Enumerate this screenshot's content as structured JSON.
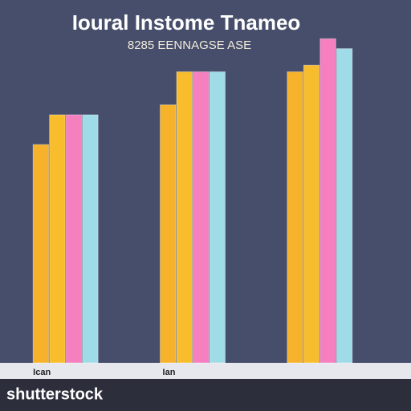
{
  "chart_data": {
    "type": "bar",
    "title": "Ioural Instome Tnameo",
    "subtitle": "8285 EENNAGSE ASE",
    "categories": [
      "Ican",
      "Ian",
      null
    ],
    "series": [
      {
        "color": "#f6b22a",
        "values": [
          66,
          78,
          88
        ]
      },
      {
        "color": "#f7bd2c",
        "values": [
          75,
          88,
          90
        ]
      },
      {
        "color": "#f57fbf",
        "values": [
          75,
          88,
          98
        ]
      },
      {
        "color": "#9fdce8",
        "values": [
          75,
          88,
          95
        ]
      }
    ],
    "ylim": [
      0,
      100
    ],
    "watermark": "shutterstock"
  }
}
